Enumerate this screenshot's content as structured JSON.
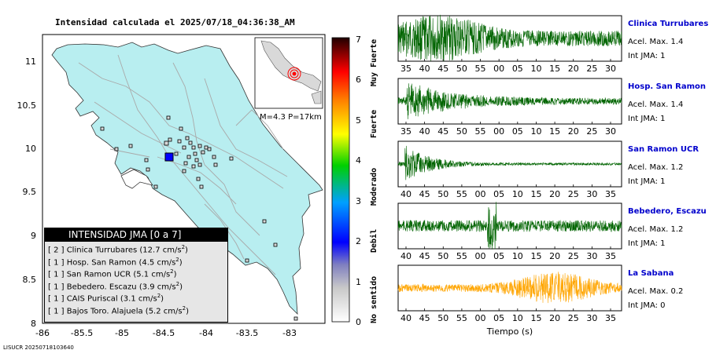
{
  "map": {
    "title": "Intensidad calculada el 2025/07/18_04:36:38_AM",
    "x_ticks": [
      "-86",
      "-85.5",
      "-85",
      "-84.5",
      "-84",
      "-83.5",
      "-83"
    ],
    "y_ticks": [
      "11",
      "10.5",
      "10",
      "9.5",
      "9",
      "8.5",
      "8"
    ],
    "inset_label": "M=4.3 P=17km",
    "footer": "LISUCR 20250718103640",
    "colors": {
      "land": "#b8eef0",
      "sea": "#ffffff",
      "roads": "#a9a9a9",
      "station_fill": "#d9d9d9",
      "epicenter": "#0000ff",
      "inset_target": "#ff0000"
    }
  },
  "legend": {
    "title": "INTENSIDAD JMA [0 a 7]",
    "rows": [
      {
        "level": "[ 2 ]",
        "station": "Clinica Turrubares",
        "value": "(12.7 cm/s",
        "unit_sup": "2",
        "close": ")"
      },
      {
        "level": "[ 1 ]",
        "station": "Hosp. San Ramon",
        "value": "(4.5 cm/s",
        "unit_sup": "2",
        "close": ")"
      },
      {
        "level": "[ 1 ]",
        "station": "San Ramon UCR",
        "value": "(5.1 cm/s",
        "unit_sup": "2",
        "close": ")"
      },
      {
        "level": "[ 1 ]",
        "station": "Bebedero. Escazu",
        "value": "(3.9 cm/s",
        "unit_sup": "2",
        "close": ")"
      },
      {
        "level": "[ 1 ]",
        "station": "CAIS Puriscal",
        "value": "(3.1 cm/s",
        "unit_sup": "2",
        "close": ")"
      },
      {
        "level": "[ 1 ]",
        "station": "Bajos Toro. Alajuela",
        "value": "(5.2 cm/s",
        "unit_sup": "2",
        "close": ")"
      }
    ]
  },
  "colorbar": {
    "ticks": [
      "0",
      "1",
      "2",
      "3",
      "4",
      "5",
      "6",
      "7"
    ],
    "labels": [
      "No sentido",
      "Debil",
      "Moderado",
      "Fuerte",
      "Muy Fuerte"
    ]
  },
  "seismograms": {
    "x_axis_label": "Tiempo (s)",
    "panels": [
      {
        "station": "Clinica Turrubares",
        "accel": "Acel. Max. 1.4",
        "jma": "Int JMA: 1",
        "color": "#006400",
        "ticks": [
          "35",
          "40",
          "45",
          "50",
          "55",
          "00",
          "05",
          "10",
          "15",
          "20",
          "25",
          "30"
        ]
      },
      {
        "station": "Hosp. San Ramon",
        "accel": "Acel. Max. 1.4",
        "jma": "Int JMA: 1",
        "color": "#006400",
        "ticks": [
          "35",
          "40",
          "45",
          "50",
          "55",
          "00",
          "05",
          "10",
          "15",
          "20",
          "25",
          "30"
        ]
      },
      {
        "station": "San Ramon UCR",
        "accel": "Acel. Max. 1.2",
        "jma": "Int JMA: 1",
        "color": "#006400",
        "ticks": [
          "40",
          "45",
          "50",
          "55",
          "00",
          "05",
          "10",
          "15",
          "20",
          "25",
          "30",
          "35"
        ]
      },
      {
        "station": "Bebedero, Escazu",
        "accel": "Acel. Max. 1.2",
        "jma": "Int JMA: 1",
        "color": "#006400",
        "ticks": [
          "40",
          "45",
          "50",
          "55",
          "00",
          "05",
          "10",
          "15",
          "20",
          "25",
          "30",
          "35"
        ]
      },
      {
        "station": "La Sabana",
        "accel": "Acel. Max. 0.2",
        "jma": "Int JMA: 0",
        "color": "#ffa500",
        "ticks": [
          "40",
          "45",
          "50",
          "55",
          "00",
          "05",
          "10",
          "15",
          "20",
          "25",
          "30",
          "35"
        ]
      }
    ]
  }
}
